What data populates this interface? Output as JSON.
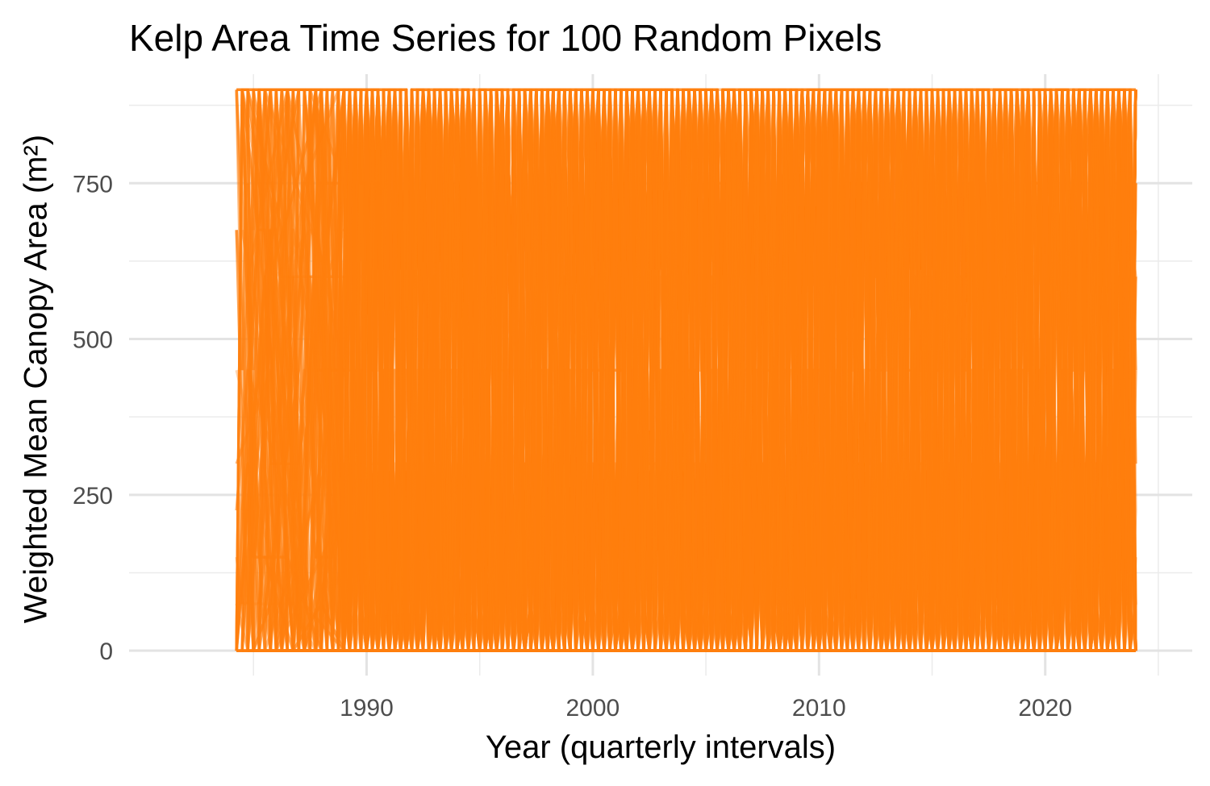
{
  "chart_data": {
    "type": "line",
    "title": "Kelp Area Time Series for 100 Random Pixels",
    "xlabel": "Year (quarterly intervals)",
    "ylabel": "Weighted Mean Canopy Area (m²)",
    "xlim": [
      1979.5,
      2026.5
    ],
    "ylim": [
      -40,
      925
    ],
    "x_ticks": [
      1990,
      2000,
      2010,
      2020
    ],
    "x_tick_labels": [
      "1990",
      "2000",
      "2010",
      "2020"
    ],
    "y_ticks": [
      0,
      250,
      500,
      750
    ],
    "y_tick_labels": [
      "0",
      "250",
      "500",
      "750"
    ],
    "grid": true,
    "legend": "none",
    "line_color": "#ff7f0e",
    "n_series": 100,
    "sampling": "quarterly",
    "x_range": [
      1984.25,
      2024.0
    ],
    "value_levels": [
      0,
      75,
      150,
      225,
      300,
      450,
      600,
      675,
      750,
      900
    ],
    "series_example": {
      "x": [
        1984.25,
        1984.5,
        1984.75,
        1985.0,
        1985.25,
        1986.5,
        1986.75,
        1988.0,
        1988.25,
        1989.0,
        1989.25,
        1989.5
      ],
      "values": [
        0,
        900,
        900,
        0,
        0,
        0,
        900,
        900,
        0,
        0,
        900,
        450
      ]
    }
  }
}
